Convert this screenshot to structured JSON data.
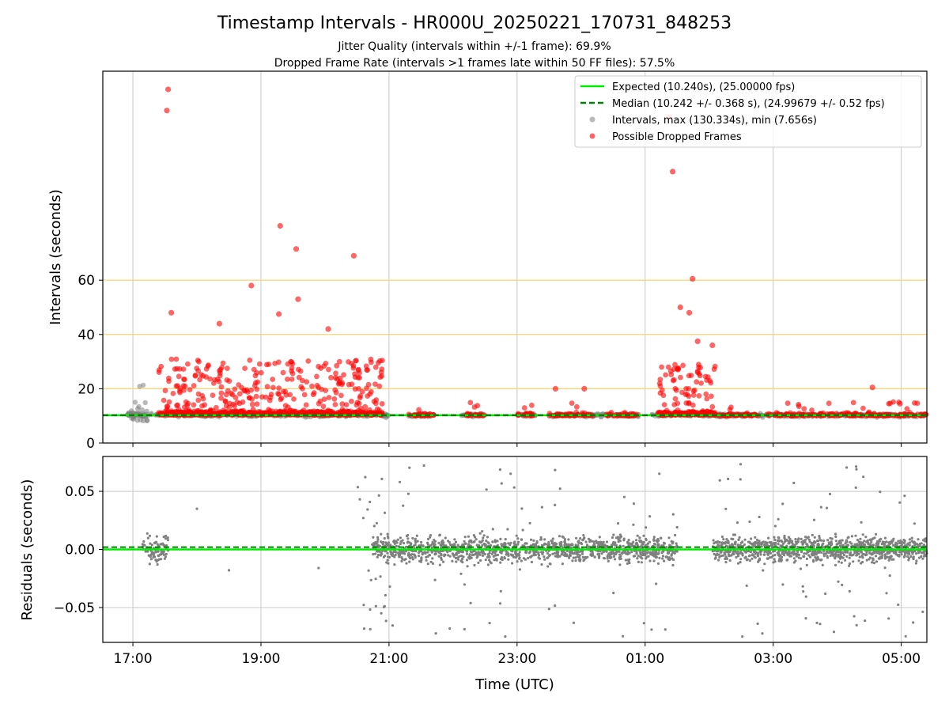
{
  "colors": {
    "expected": "#00ee00",
    "median": "#007f00",
    "intervals": "#808080",
    "dropped": "#ff0000",
    "hline": "#ffd070",
    "grid": "#c8c8c8"
  },
  "chart_data": [
    {
      "type": "scatter",
      "title": "Timestamp Intervals - HR000U_20250221_170731_848253",
      "subtitle_1": "Jitter Quality (intervals within +/-1 frame): 69.9%",
      "subtitle_2": "Dropped Frame Rate (intervals >1 frames late within 50 FF files): 57.5%",
      "ylabel": "Intervals (seconds)",
      "ylim": [
        0,
        137
      ],
      "yticks": [
        "0",
        "20",
        "40",
        "60"
      ],
      "ytick_values": [
        0,
        20,
        40,
        60
      ],
      "reference_lines": [
        20,
        40,
        60
      ],
      "expected_value": 10.24,
      "median_value": 10.242,
      "legend_position": "top-right",
      "legend": [
        "Expected (10.240s), (25.00000 fps)",
        "Median (10.242 +/- 0.368 s), (24.99679 +/- 0.52 fps)",
        "Intervals, max (130.334s), min (7.656s)",
        "Possible Dropped Frames"
      ],
      "dropped_frames_outliers": [
        {
          "x": 0.55,
          "y": 130.3
        },
        {
          "x": 0.53,
          "y": 122.5
        },
        {
          "x": 2.3,
          "y": 80
        },
        {
          "x": 2.55,
          "y": 71.5
        },
        {
          "x": 3.45,
          "y": 69
        },
        {
          "x": 1.85,
          "y": 58
        },
        {
          "x": 2.58,
          "y": 53
        },
        {
          "x": 0.6,
          "y": 48
        },
        {
          "x": 2.28,
          "y": 47.5
        },
        {
          "x": 1.35,
          "y": 44
        },
        {
          "x": 3.05,
          "y": 42
        },
        {
          "x": 9.05,
          "y": 36
        },
        {
          "x": 8.38,
          "y": 120
        },
        {
          "x": 8.43,
          "y": 100
        },
        {
          "x": 8.74,
          "y": 60.5
        },
        {
          "x": 8.55,
          "y": 50
        },
        {
          "x": 8.69,
          "y": 48
        },
        {
          "x": 8.82,
          "y": 37.5
        },
        {
          "x": 7.05,
          "y": 20
        },
        {
          "x": 6.6,
          "y": 20
        },
        {
          "x": 11.55,
          "y": 20.5
        },
        {
          "x": 11.98,
          "y": 14.5
        }
      ],
      "x_range": [
        -0.47,
        12.4
      ]
    },
    {
      "type": "scatter",
      "xlabel": "Time (UTC)",
      "ylabel": "Residuals (seconds)",
      "ylim": [
        -0.08,
        0.08
      ],
      "yticks": [
        "0.05",
        "0.00",
        "−0.05"
      ],
      "ytick_values": [
        0.05,
        0,
        -0.05
      ],
      "xticks": [
        "17:00",
        "19:00",
        "21:00",
        "23:00",
        "01:00",
        "03:00",
        "05:00"
      ],
      "xtick_values": [
        0,
        2,
        4,
        6,
        8,
        10,
        12
      ],
      "x_range": [
        -0.47,
        12.4
      ]
    }
  ]
}
